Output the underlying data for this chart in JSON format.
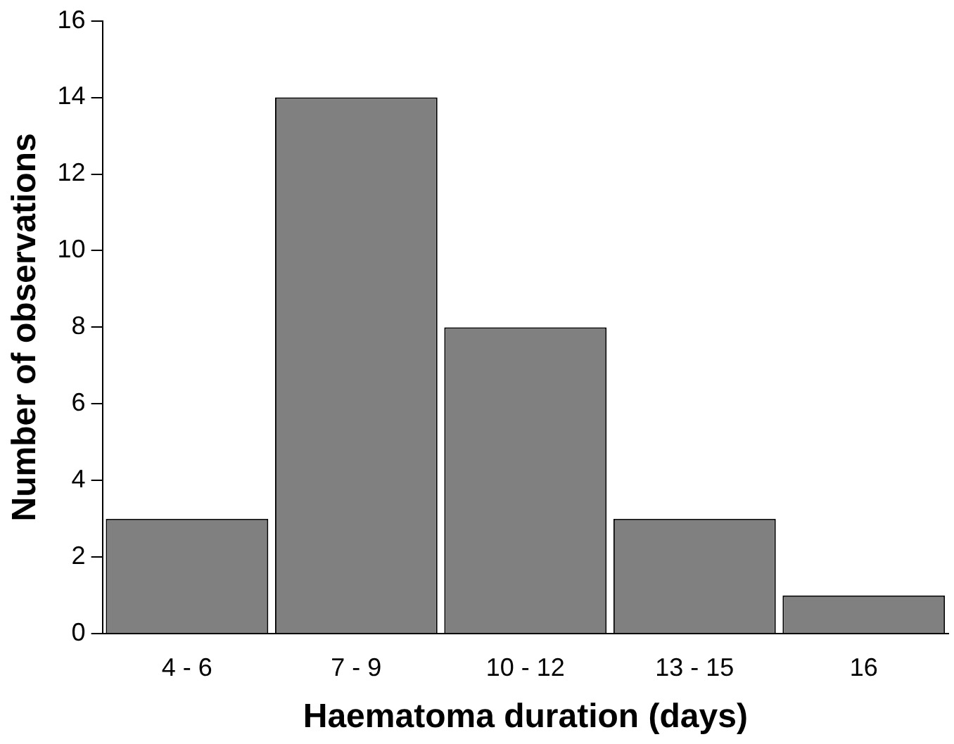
{
  "chart_data": {
    "type": "bar",
    "xlabel": "Haematoma duration (days)",
    "ylabel": "Number of observations",
    "categories": [
      "4 - 6",
      "7 - 9",
      "10 - 12",
      "13 - 15",
      "16"
    ],
    "values": [
      3,
      14,
      8,
      3,
      1
    ],
    "color": "#808080",
    "ylim": [
      0,
      16
    ],
    "yticks": [
      0,
      2,
      4,
      6,
      8,
      10,
      12,
      14,
      16
    ],
    "grid": false,
    "legend": false
  }
}
